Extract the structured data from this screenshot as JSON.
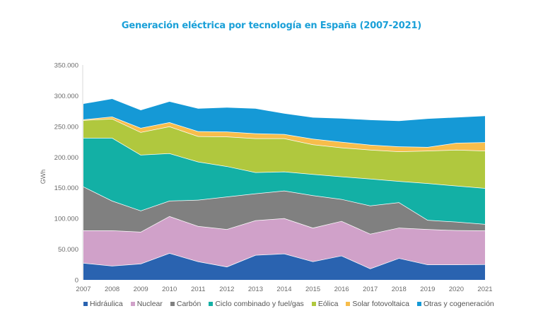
{
  "chart_data": {
    "type": "area",
    "stacked": true,
    "title": "Generación eléctrica por tecnología en España (2007-2021)",
    "xlabel": "",
    "ylabel": "GWh",
    "ylim": [
      0,
      350000
    ],
    "yticks": [
      0,
      50000,
      100000,
      150000,
      200000,
      250000,
      300000,
      350000
    ],
    "ytick_labels": [
      "0",
      "50.000",
      "100.000",
      "150.000",
      "200.000",
      "250.000",
      "300.000",
      "350.000"
    ],
    "grid": false,
    "legend_position": "bottom",
    "categories": [
      "2007",
      "2008",
      "2009",
      "2010",
      "2011",
      "2012",
      "2013",
      "2014",
      "2015",
      "2016",
      "2017",
      "2018",
      "2019",
      "2020",
      "2021"
    ],
    "series": [
      {
        "name": "Hidráulica",
        "color": "#2a63b0",
        "values": [
          27600,
          23000,
          26500,
          43800,
          30000,
          21500,
          40500,
          42800,
          30000,
          39500,
          18500,
          35500,
          25000,
          25000,
          25500
        ]
      },
      {
        "name": "Nuclear",
        "color": "#d0a1c9",
        "values": [
          53000,
          57600,
          51800,
          59900,
          57600,
          61100,
          56400,
          57600,
          54800,
          56400,
          56400,
          49500,
          57600,
          55800,
          55000
        ]
      },
      {
        "name": "Carbón",
        "color": "#808080",
        "values": [
          71400,
          48400,
          34500,
          25300,
          42700,
          53000,
          43800,
          44900,
          52900,
          35700,
          46100,
          41400,
          14900,
          13800,
          10400
        ]
      },
      {
        "name": "Ciclo combinado y fuel/gas",
        "color": "#13b0a5",
        "values": [
          79400,
          102400,
          91000,
          77200,
          62200,
          49500,
          34500,
          31100,
          34500,
          36800,
          43700,
          34500,
          59900,
          58700,
          58700
        ]
      },
      {
        "name": "Eólica",
        "color": "#b0c83e",
        "values": [
          28800,
          31100,
          36800,
          43700,
          41400,
          48400,
          55300,
          54100,
          48400,
          47200,
          47200,
          48400,
          52900,
          58700,
          60900
        ]
      },
      {
        "name": "Solar fotovoltaica",
        "color": "#f7bd4b",
        "values": [
          1200,
          3500,
          6900,
          6900,
          8100,
          8100,
          8100,
          6900,
          9200,
          9200,
          8100,
          8100,
          6100,
          11200,
          13800
        ]
      },
      {
        "name": "Otras y cogeneración",
        "color": "#1599d6",
        "values": [
          25300,
          28700,
          28800,
          33400,
          36800,
          39100,
          40300,
          33400,
          34500,
          38000,
          40300,
          41400,
          46000,
          41400,
          42600
        ]
      }
    ]
  }
}
